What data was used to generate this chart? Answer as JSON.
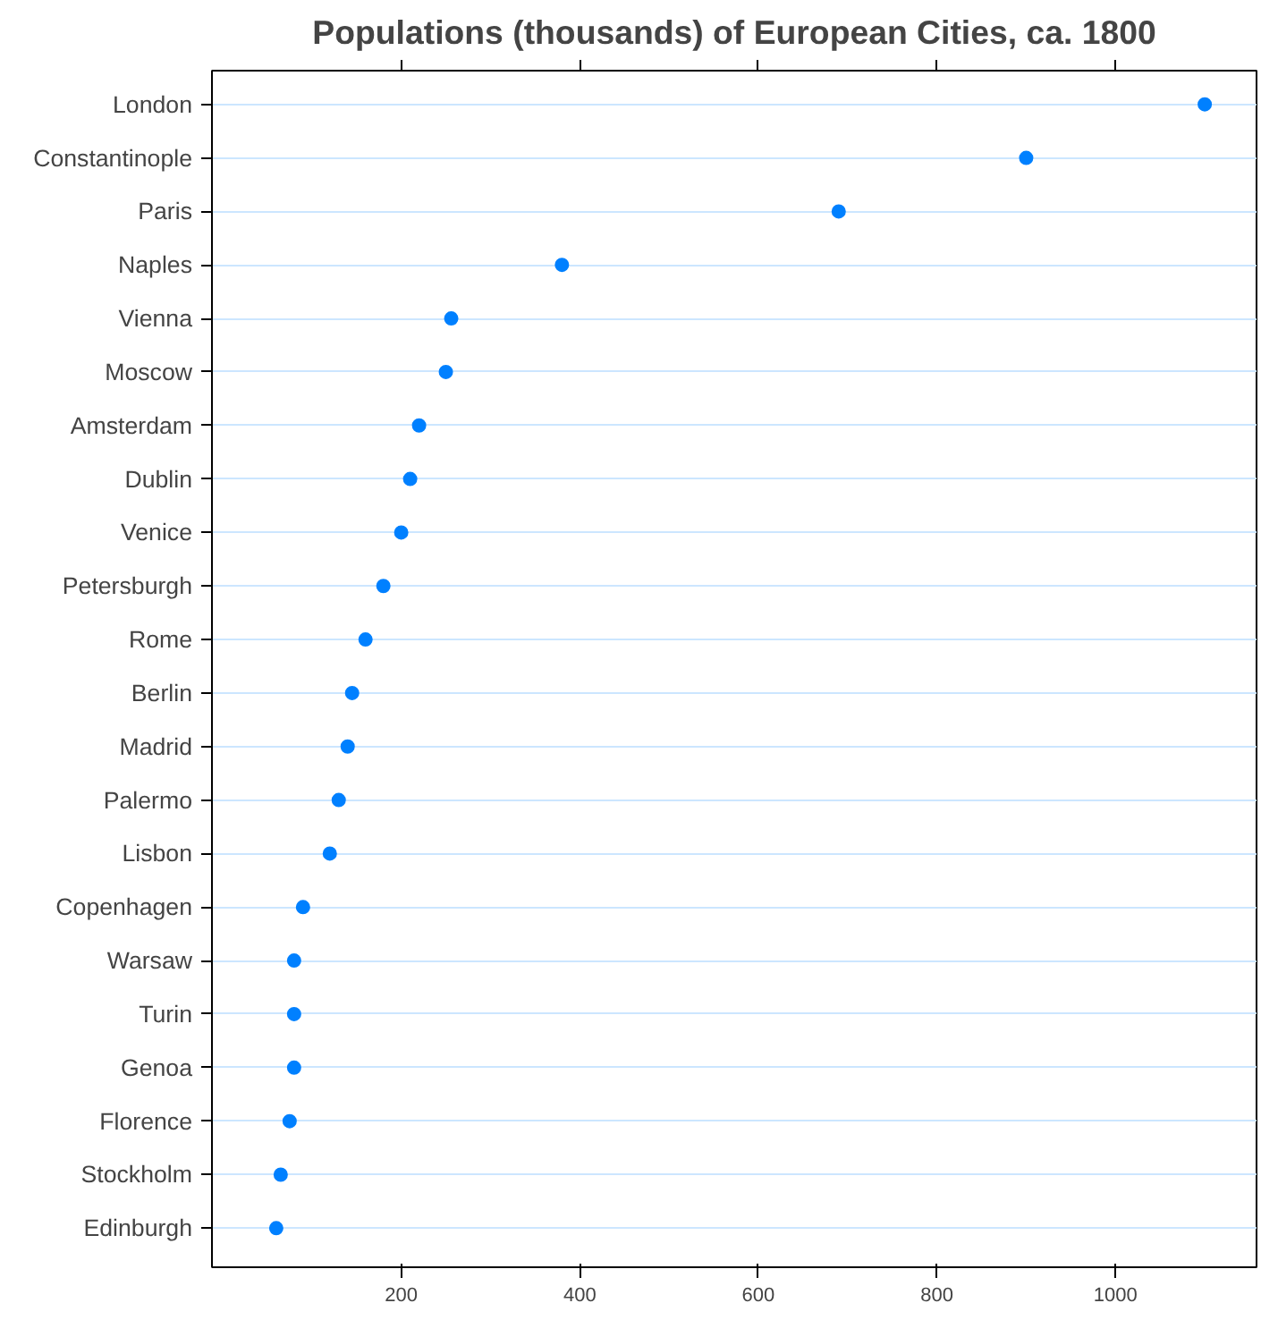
{
  "chart_data": {
    "type": "scatter",
    "title": "Populations (thousands) of European Cities, ca. 1800",
    "categories": [
      "London",
      "Constantinople",
      "Paris",
      "Naples",
      "Vienna",
      "Moscow",
      "Amsterdam",
      "Dublin",
      "Venice",
      "Petersburgh",
      "Rome",
      "Berlin",
      "Madrid",
      "Palermo",
      "Lisbon",
      "Copenhagen",
      "Warsaw",
      "Turin",
      "Genoa",
      "Florence",
      "Stockholm",
      "Edinburgh"
    ],
    "orientation": "horizontal",
    "values": [
      1100,
      900,
      690,
      380,
      256,
      250,
      220,
      210,
      200,
      180,
      160,
      145,
      140,
      130,
      120,
      90,
      80,
      80,
      80,
      75,
      65,
      60
    ],
    "color": "#0080ff",
    "marker": "circle",
    "grid": "y",
    "xlim": [
      -12,
      1158
    ],
    "xticks": [
      200,
      400,
      600,
      800,
      1000
    ]
  }
}
